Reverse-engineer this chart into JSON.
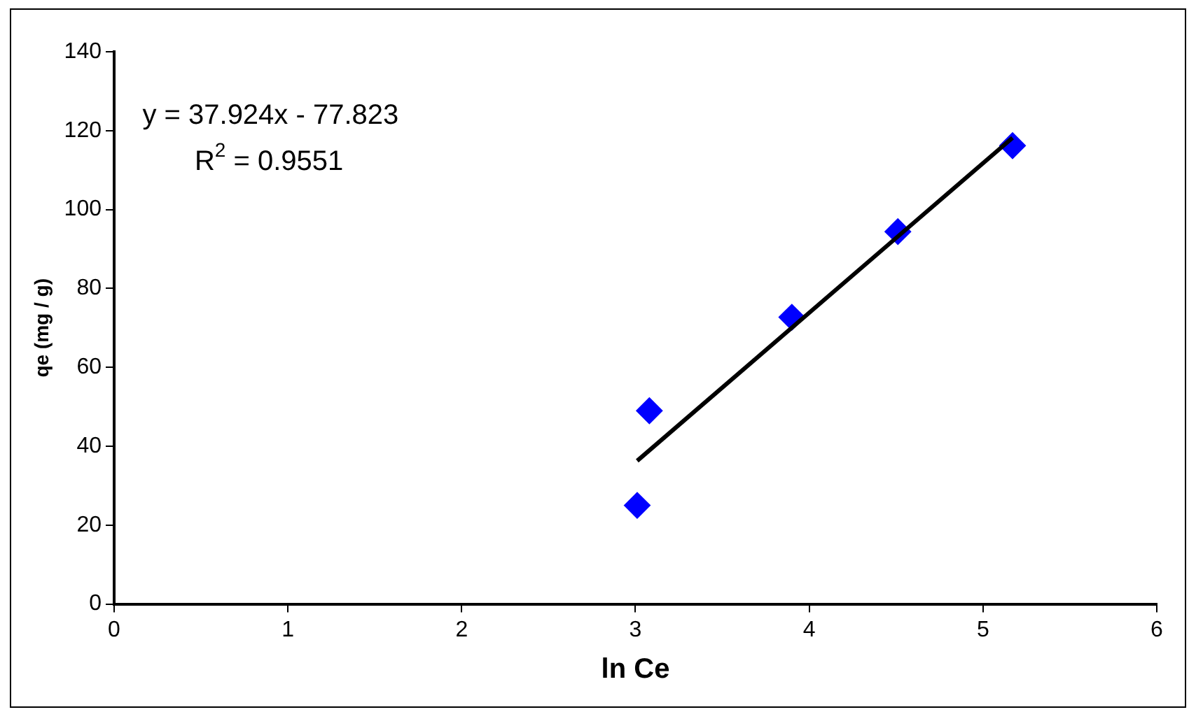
{
  "chart_data": {
    "type": "scatter",
    "xlabel": "ln Ce",
    "ylabel": "qe (mg / g)",
    "annotations": [
      "y = 37.924x - 77.823",
      "R$^{2}$ = 0.9551"
    ],
    "xlim": [
      0,
      6
    ],
    "xticks": [
      0,
      1,
      2,
      3,
      4,
      5,
      6
    ],
    "ylim": [
      0,
      140
    ],
    "yticks": [
      0,
      20,
      40,
      60,
      80,
      100,
      120,
      140
    ],
    "grid": false,
    "legend": false,
    "marker": "diamond",
    "series": [
      {
        "color": "#0000ff",
        "x": [
          3.01,
          3.08,
          3.9,
          4.51,
          5.17
        ],
        "values": [
          25,
          49,
          72.7,
          94.4,
          116.2
        ]
      },
      {
        "type": "line",
        "color": "#000000",
        "marker": "none",
        "x": [
          3.01,
          5.17
        ],
        "values": [
          36.3,
          118.2
        ]
      }
    ]
  }
}
